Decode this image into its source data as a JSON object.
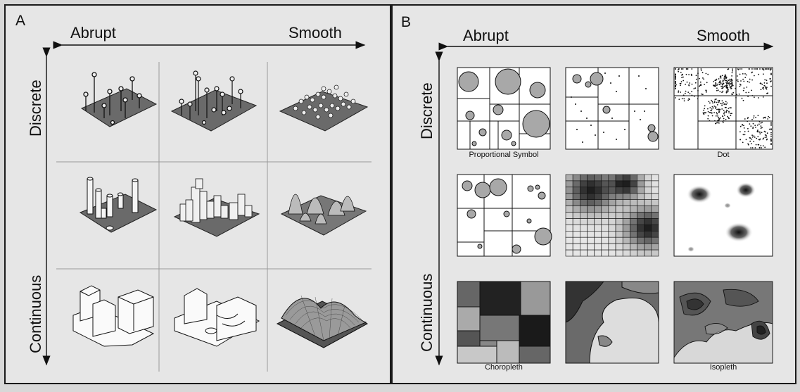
{
  "panel_a": {
    "letter": "A",
    "abrupt_label": "Abrupt",
    "smooth_label": "Smooth",
    "discrete_label": "Discrete",
    "continuous_label": "Continuous"
  },
  "panel_b": {
    "letter": "B",
    "abrupt_label": "Abrupt",
    "smooth_label": "Smooth",
    "discrete_label": "Discrete",
    "continuous_label": "Continuous",
    "captions": {
      "proportional_symbol": "Proportional Symbol",
      "dot": "Dot",
      "choropleth": "Choropleth",
      "isopleth": "Isopleth"
    }
  },
  "colors": {
    "ink": "#111111",
    "paper": "#e6e6e6",
    "surface": "#6a6a6a",
    "symbol": "#a8a8a8"
  }
}
